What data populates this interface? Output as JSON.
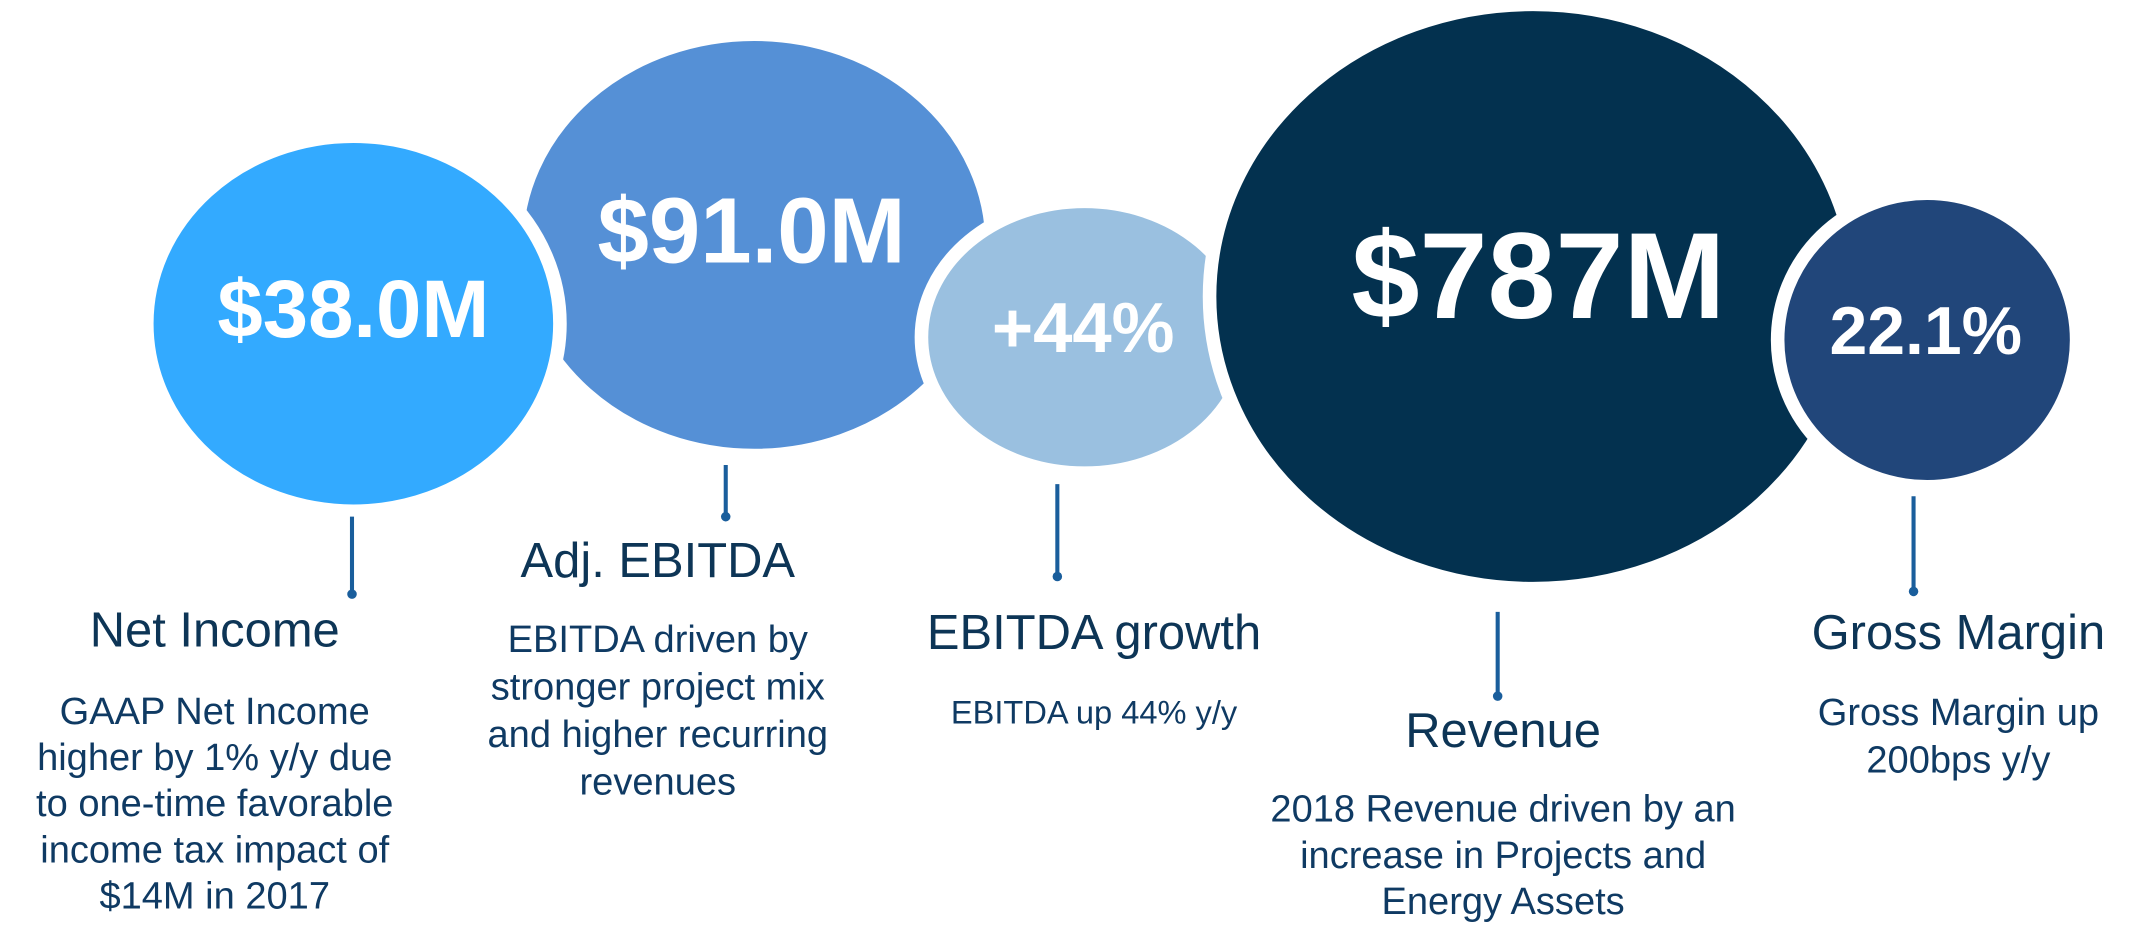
{
  "items": [
    {
      "value": "$91.0M",
      "label": "Adj. EBITDA",
      "description": [
        "EBITDA driven by",
        "stronger project mix",
        "and higher recurring",
        "revenues"
      ],
      "color": "#5590d6"
    },
    {
      "value": "$38.0M",
      "label": "Net Income",
      "description": [
        "GAAP Net Income",
        "higher by 1% y/y due",
        "to one-time favorable",
        "income tax impact of",
        "$14M in 2017"
      ],
      "color": "#33aaff"
    },
    {
      "value": "+44%",
      "label": "EBITDA growth",
      "description": [
        "EBITDA up 44% y/y"
      ],
      "color": "#9ac0e0"
    },
    {
      "value": "$787M",
      "label": "Revenue",
      "description": [
        "2018 Revenue driven by an",
        "increase in Projects and",
        "Energy Assets"
      ],
      "color": "#03314f"
    },
    {
      "value": "22.1%",
      "label": "Gross Margin",
      "description": [
        "Gross Margin up",
        "200bps y/y"
      ],
      "color": "#21467a"
    }
  ]
}
